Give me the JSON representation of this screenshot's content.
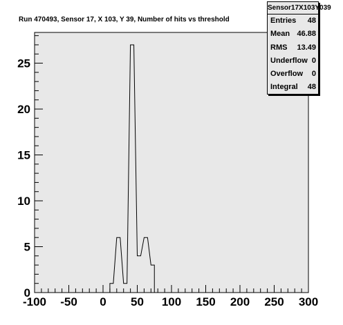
{
  "chart_data": {
    "type": "bar",
    "title": "Run 470493, Sensor 17, X 103, Y 39, Number of hits vs threshold",
    "xlabel": "",
    "ylabel": "",
    "xlim": [
      -100,
      300
    ],
    "ylim": [
      0,
      28.35
    ],
    "bin_width": 5,
    "bins": [
      {
        "x": 10,
        "value": 1
      },
      {
        "x": 20,
        "value": 6
      },
      {
        "x": 30,
        "value": 1
      },
      {
        "x": 40,
        "value": 27
      },
      {
        "x": 50,
        "value": 4
      },
      {
        "x": 60,
        "value": 6
      },
      {
        "x": 70,
        "value": 3
      }
    ],
    "x_ticks": [
      "-100",
      "-50",
      "0",
      "50",
      "100",
      "150",
      "200",
      "250",
      "300"
    ],
    "y_ticks": [
      "0",
      "5",
      "10",
      "15",
      "20",
      "25"
    ],
    "grid": false,
    "legend": "none",
    "colors": {
      "plot_bg": "#e8e8e8",
      "hist_line": "#000000"
    }
  },
  "stats": {
    "title": "Sensor17X103Y039",
    "rows": [
      {
        "label": "Entries",
        "value": "48"
      },
      {
        "label": "Mean",
        "value": "46.88"
      },
      {
        "label": "RMS",
        "value": "13.49"
      },
      {
        "label": "Underflow",
        "value": "0"
      },
      {
        "label": "Overflow",
        "value": "0"
      },
      {
        "label": "Integral",
        "value": "48"
      }
    ]
  }
}
